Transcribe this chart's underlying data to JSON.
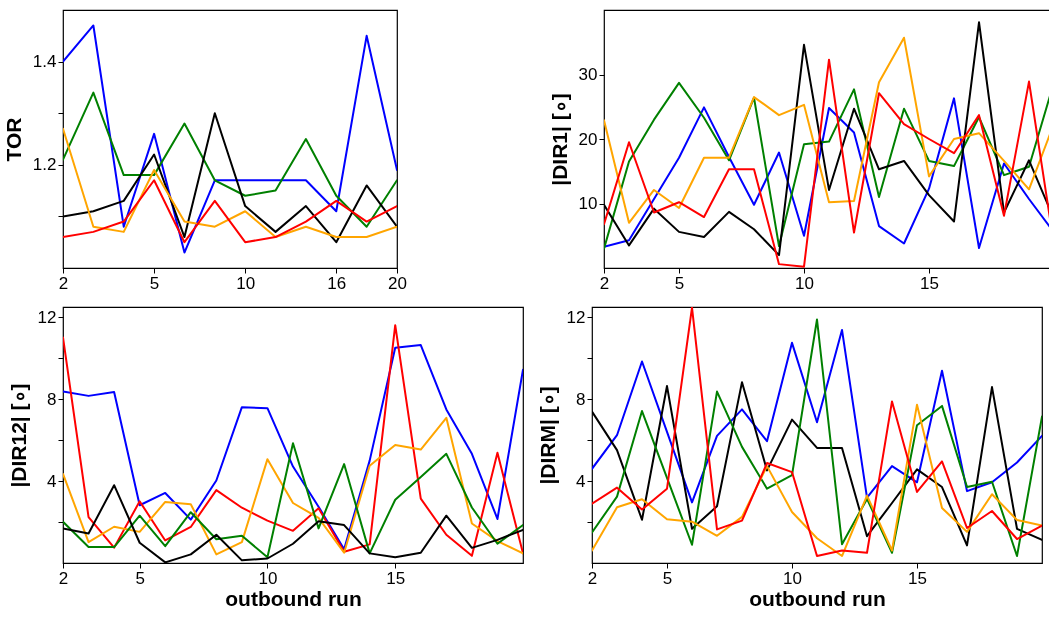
{
  "chart_data": [
    {
      "type": "line",
      "ylabel": "TOR",
      "categories": [
        "2",
        null,
        null,
        "5",
        null,
        null,
        "10",
        null,
        null,
        "16",
        null,
        "20"
      ],
      "ylim": [
        1.0,
        1.5
      ],
      "yticks": [
        {
          "value": 1.1,
          "label": null
        },
        1.2,
        {
          "value": 1.3,
          "label": null
        },
        1.4
      ],
      "grid": false,
      "legend": false,
      "series": [
        {
          "color": "#0000ff",
          "values": [
            1.4,
            1.47,
            1.08,
            1.26,
            1.03,
            1.17,
            1.17,
            1.17,
            1.17,
            1.11,
            1.45,
            1.19
          ]
        },
        {
          "color": "#008000",
          "values": [
            1.21,
            1.34,
            1.18,
            1.18,
            1.28,
            1.17,
            1.14,
            1.15,
            1.25,
            1.14,
            1.08,
            1.17
          ]
        },
        {
          "color": "#000000",
          "values": [
            1.1,
            1.11,
            1.13,
            1.22,
            1.06,
            1.3,
            1.12,
            1.07,
            1.12,
            1.05,
            1.16,
            1.08
          ]
        },
        {
          "color": "#ffa500",
          "values": [
            1.27,
            1.08,
            1.07,
            1.19,
            1.09,
            1.08,
            1.11,
            1.06,
            1.08,
            1.06,
            1.06,
            1.08
          ]
        },
        {
          "color": "#ff0000",
          "values": [
            1.06,
            1.07,
            1.09,
            1.17,
            1.05,
            1.13,
            1.05,
            1.06,
            1.09,
            1.13,
            1.09,
            1.12
          ]
        }
      ]
    },
    {
      "type": "line",
      "ylabel": "|DIR1| [∘]",
      "x": [
        2,
        3,
        4,
        5,
        6,
        7,
        8,
        9,
        10,
        11,
        12,
        13,
        14,
        15,
        16,
        17,
        18,
        19,
        20
      ],
      "xlim": [
        2,
        20
      ],
      "xticks": [
        2,
        5,
        10,
        15
      ],
      "ylim": [
        0,
        40
      ],
      "yticks": [
        10,
        20,
        30
      ],
      "grid": false,
      "legend": false,
      "series": [
        {
          "color": "#0000ff",
          "values": [
            3.3,
            4.3,
            10.7,
            17.1,
            24.9,
            17.2,
            9.8,
            17.9,
            5.0,
            24.8,
            21.0,
            6.5,
            3.8,
            12.3,
            26.3,
            3.1,
            16.2,
            10.7,
            5.5
          ]
        },
        {
          "color": "#008000",
          "values": [
            3.0,
            16.5,
            23.0,
            28.7,
            23.3,
            16.7,
            26.4,
            3.4,
            19.2,
            19.6,
            27.7,
            11.0,
            24.7,
            16.6,
            15.8,
            23.4,
            14.4,
            15.7,
            28.8
          ]
        },
        {
          "color": "#000000",
          "values": [
            9.8,
            3.5,
            9.2,
            5.6,
            4.8,
            8.7,
            6.0,
            2.0,
            34.6,
            12.1,
            24.7,
            15.3,
            16.6,
            11.3,
            7.2,
            38.1,
            8.6,
            16.7,
            7.6
          ]
        },
        {
          "color": "#ffa500",
          "values": [
            22.9,
            7.0,
            12.1,
            9.3,
            17.1,
            17.1,
            26.5,
            23.7,
            25.3,
            10.2,
            10.4,
            28.8,
            35.7,
            14.2,
            20.0,
            20.9,
            16.6,
            12.2,
            22.4
          ]
        },
        {
          "color": "#ff0000",
          "values": [
            6.8,
            19.5,
            8.6,
            10.2,
            7.9,
            15.3,
            15.3,
            0.6,
            0.2,
            32.3,
            5.5,
            27.1,
            22.3,
            20.0,
            17.8,
            23.7,
            8.1,
            28.9,
            3.6
          ]
        }
      ]
    },
    {
      "type": "line",
      "ylabel": "|DIR12| [∘]",
      "xlabel": "outbound run",
      "x": [
        2,
        3,
        4,
        5,
        6,
        7,
        8,
        9,
        10,
        11,
        12,
        13,
        14,
        15,
        16,
        17,
        18,
        19,
        20
      ],
      "xlim": [
        2,
        20
      ],
      "xticks": [
        2,
        5,
        10,
        15
      ],
      "ylim": [
        0,
        12.5
      ],
      "yticks": [
        {
          "value": 2,
          "label": null
        },
        4,
        {
          "value": 6,
          "label": null
        },
        8,
        {
          "value": 10,
          "label": null
        },
        12
      ],
      "grid": false,
      "legend": false,
      "series": [
        {
          "color": "#0000ff",
          "values": [
            8.38,
            8.16,
            8.35,
            2.82,
            3.42,
            2.12,
            4.03,
            7.61,
            7.56,
            4.71,
            2.75,
            0.67,
            5.0,
            10.51,
            10.64,
            7.5,
            5.33,
            2.15,
            9.44
          ]
        },
        {
          "color": "#ff0000",
          "values": [
            11.01,
            2.24,
            0.75,
            3.01,
            1.1,
            1.76,
            3.56,
            2.7,
            2.07,
            1.57,
            2.67,
            0.55,
            0.91,
            11.61,
            3.14,
            1.38,
            0.35,
            5.38,
            0.47
          ]
        },
        {
          "color": "#ffa500",
          "values": [
            4.35,
            1.02,
            1.77,
            1.52,
            2.98,
            2.87,
            0.42,
            1.02,
            5.07,
            2.93,
            2.2,
            0.5,
            4.75,
            5.76,
            5.54,
            7.09,
            1.93,
            1.07,
            0.47
          ]
        },
        {
          "color": "#008000",
          "values": [
            2.01,
            0.78,
            0.78,
            2.31,
            0.82,
            2.48,
            1.16,
            1.33,
            0.28,
            5.85,
            1.69,
            4.83,
            0.47,
            3.09,
            4.2,
            5.33,
            2.71,
            0.94,
            1.85
          ]
        },
        {
          "color": "#000000",
          "values": [
            1.68,
            1.44,
            3.8,
            0.99,
            0.03,
            0.42,
            1.38,
            0.13,
            0.22,
            0.94,
            2.04,
            1.85,
            0.47,
            0.28,
            0.5,
            2.31,
            0.74,
            1.13,
            1.62
          ]
        }
      ]
    },
    {
      "type": "line",
      "ylabel": "|DIRM| [∘]",
      "xlabel": "outbound run",
      "x": [
        2,
        3,
        4,
        5,
        6,
        7,
        8,
        9,
        10,
        11,
        12,
        13,
        14,
        15,
        16,
        17,
        18,
        19,
        20
      ],
      "xlim": [
        2,
        20
      ],
      "xticks": [
        2,
        5,
        10,
        15
      ],
      "ylim": [
        0,
        12.5
      ],
      "yticks": [
        {
          "value": 2,
          "label": null
        },
        4,
        {
          "value": 6,
          "label": null
        },
        8,
        {
          "value": 10,
          "label": null
        },
        12
      ],
      "grid": false,
      "legend": false,
      "series": [
        {
          "color": "#0000ff",
          "values": [
            4.6,
            6.24,
            9.84,
            6.4,
            2.96,
            6.21,
            7.5,
            5.95,
            10.75,
            6.87,
            11.38,
            3.19,
            4.73,
            3.94,
            9.39,
            3.51,
            3.94,
            4.91,
            6.21
          ]
        },
        {
          "color": "#000000",
          "values": [
            7.39,
            5.51,
            2.11,
            8.64,
            1.67,
            2.77,
            8.83,
            4.52,
            7.0,
            5.62,
            5.62,
            1.31,
            2.93,
            4.57,
            3.71,
            0.86,
            8.59,
            1.67,
            1.13
          ]
        },
        {
          "color": "#008000",
          "values": [
            1.49,
            3.24,
            7.42,
            4.16,
            0.89,
            8.37,
            5.67,
            3.63,
            4.29,
            11.89,
            0.92,
            3.13,
            0.5,
            6.73,
            7.67,
            3.71,
            3.97,
            0.34,
            7.15
          ]
        },
        {
          "color": "#ffa500",
          "values": [
            0.61,
            2.72,
            3.11,
            2.14,
            2.02,
            1.33,
            2.25,
            4.73,
            2.49,
            1.21,
            0.34,
            3.29,
            0.61,
            7.73,
            2.69,
            1.52,
            3.36,
            2.1,
            1.83
          ]
        },
        {
          "color": "#ff0000",
          "values": [
            2.9,
            3.68,
            2.61,
            3.63,
            12.47,
            1.64,
            2.07,
            4.88,
            4.44,
            0.34,
            0.61,
            0.5,
            7.89,
            3.47,
            4.96,
            1.71,
            2.54,
            1.17,
            1.83
          ]
        }
      ]
    }
  ]
}
